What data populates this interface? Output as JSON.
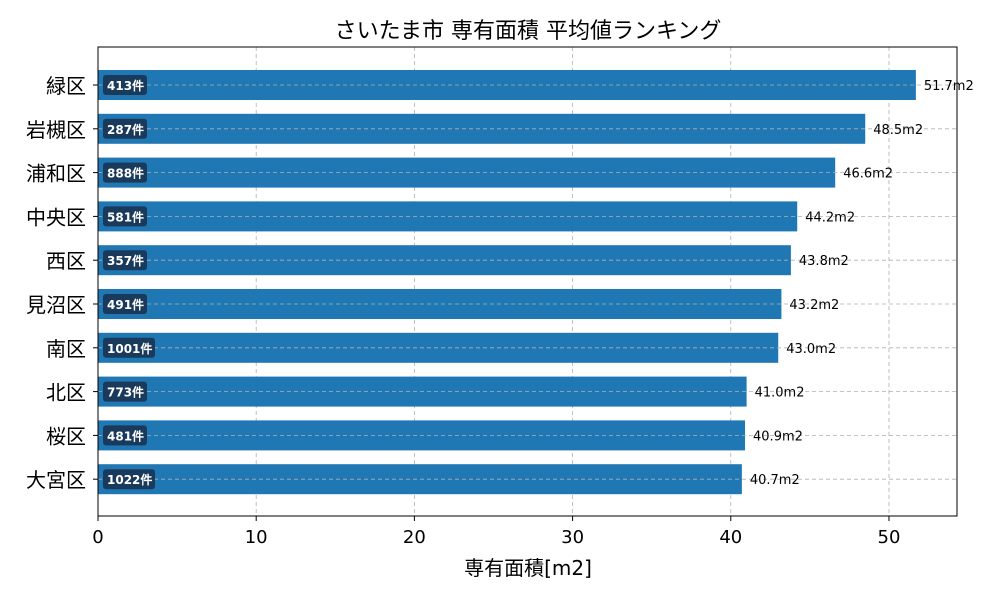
{
  "chart_data": {
    "type": "bar",
    "orientation": "horizontal",
    "title": "さいたま市 専有面積 平均値ランキング",
    "xlabel": "専有面積[m2]",
    "ylabel": "",
    "xlim": [
      0,
      54.3
    ],
    "xticks": [
      0,
      10,
      20,
      30,
      40,
      50
    ],
    "grid": true,
    "bar_color": "#1f77b4",
    "count_badge_color": "#1a3a5c",
    "categories": [
      "緑区",
      "岩槻区",
      "浦和区",
      "中央区",
      "西区",
      "見沼区",
      "南区",
      "北区",
      "桜区",
      "大宮区"
    ],
    "values": [
      51.7,
      48.5,
      46.6,
      44.2,
      43.8,
      43.2,
      43.0,
      41.0,
      40.9,
      40.7
    ],
    "value_labels": [
      "51.7m2",
      "48.5m2",
      "46.6m2",
      "44.2m2",
      "43.8m2",
      "43.2m2",
      "43.0m2",
      "41.0m2",
      "40.9m2",
      "40.7m2"
    ],
    "counts": [
      "413件",
      "287件",
      "888件",
      "581件",
      "357件",
      "491件",
      "1001件",
      "773件",
      "481件",
      "1022件"
    ]
  }
}
